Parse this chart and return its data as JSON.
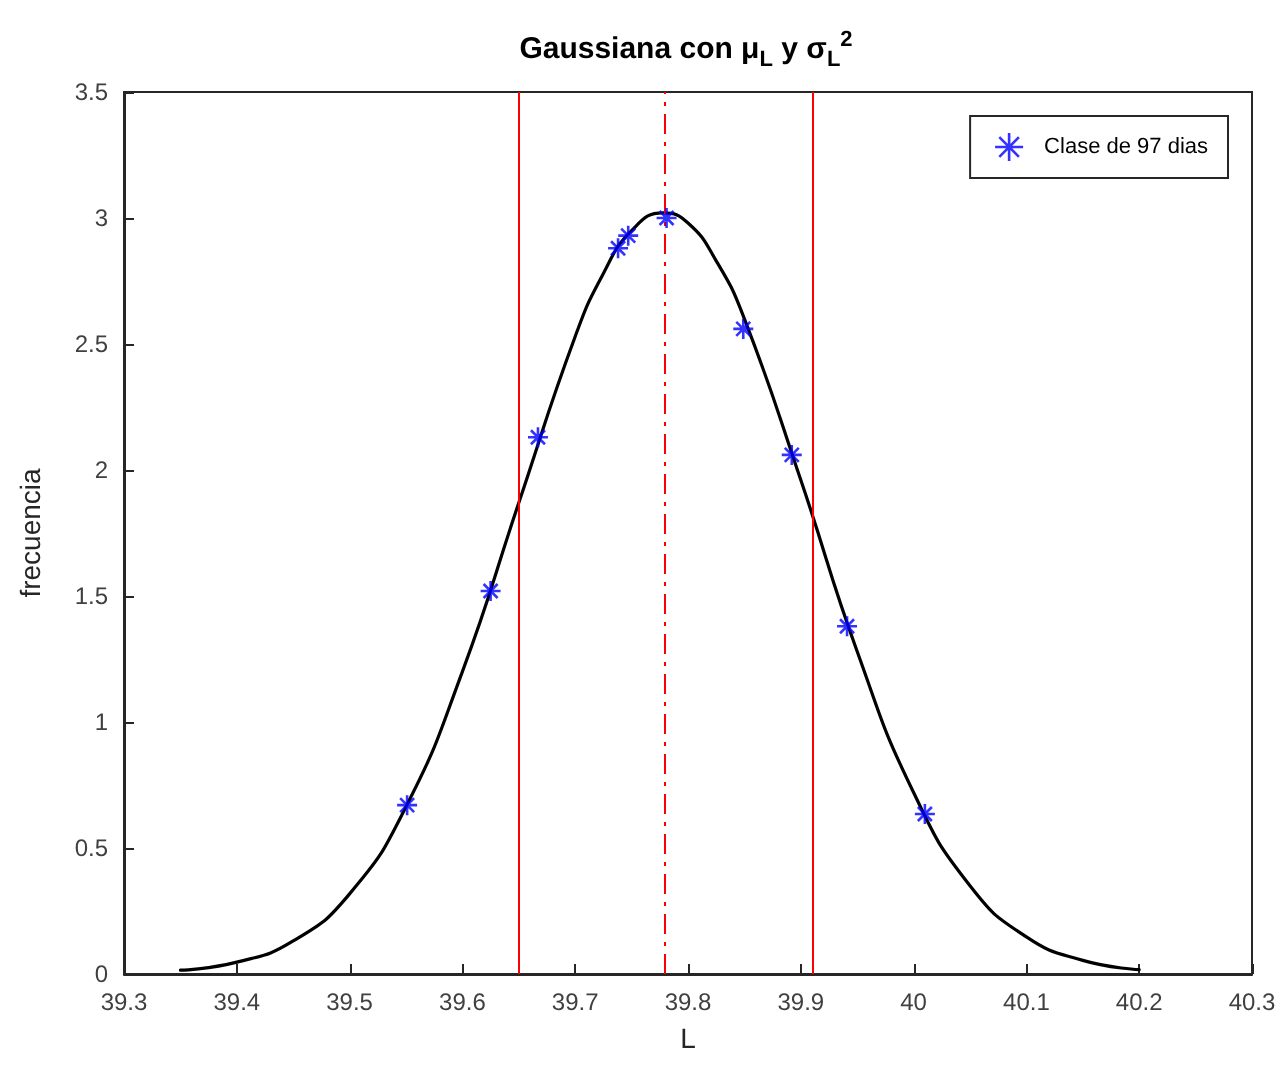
{
  "chart_data": {
    "type": "scatter",
    "title": "Gaussiana con μ$_{L}$ y σ$_{L}$$^{2}$",
    "xlabel": "L",
    "ylabel": "frecuencia",
    "xlim": [
      39.3,
      40.3
    ],
    "xticks": [
      39.3,
      39.4,
      39.5,
      39.6,
      39.7,
      39.8,
      39.9,
      40,
      40.1,
      40.2,
      40.3
    ],
    "ylim": [
      0,
      3.5
    ],
    "yticks": [
      0,
      0.5,
      1,
      1.5,
      2,
      2.5,
      3,
      3.5
    ],
    "grid": false,
    "legend": "top right",
    "series": [
      {
        "name": "Clase de 97 dias",
        "type": "scatter",
        "marker": "cross",
        "color": "#0000ff",
        "x": [
          39.551,
          39.625,
          39.667,
          39.738,
          39.747,
          39.781,
          39.849,
          39.892,
          39.941,
          40.01
        ],
        "values": [
          0.67,
          1.52,
          2.13,
          2.88,
          2.93,
          3.0,
          2.56,
          2.06,
          1.38,
          0.635
        ]
      },
      {
        "type": "line",
        "marker": "none",
        "line_style": "solid",
        "color": "#000000",
        "x": [
          39.35,
          39.4,
          39.45,
          39.5,
          39.55,
          39.6,
          39.65,
          39.7,
          39.725,
          39.75,
          39.778,
          39.8,
          39.825,
          39.85,
          39.9,
          39.95,
          40.0,
          40.05,
          40.1,
          40.15,
          40.2
        ],
        "values": [
          0.015,
          0.047,
          0.131,
          0.318,
          0.664,
          1.2,
          1.87,
          2.53,
          2.78,
          2.95,
          3.02,
          2.98,
          2.83,
          2.6,
          1.96,
          1.28,
          0.72,
          0.35,
          0.147,
          0.054,
          0.017
        ]
      }
    ],
    "ref_lines": [
      {
        "axis": "x",
        "value": 39.646,
        "color": "#ff0000",
        "line_style": "solid"
      },
      {
        "axis": "x",
        "value": 39.779,
        "color": "#ff0000",
        "line_style": "dashed"
      },
      {
        "axis": "x",
        "value": 39.91,
        "color": "#ff0000",
        "line_style": "solid"
      }
    ]
  }
}
